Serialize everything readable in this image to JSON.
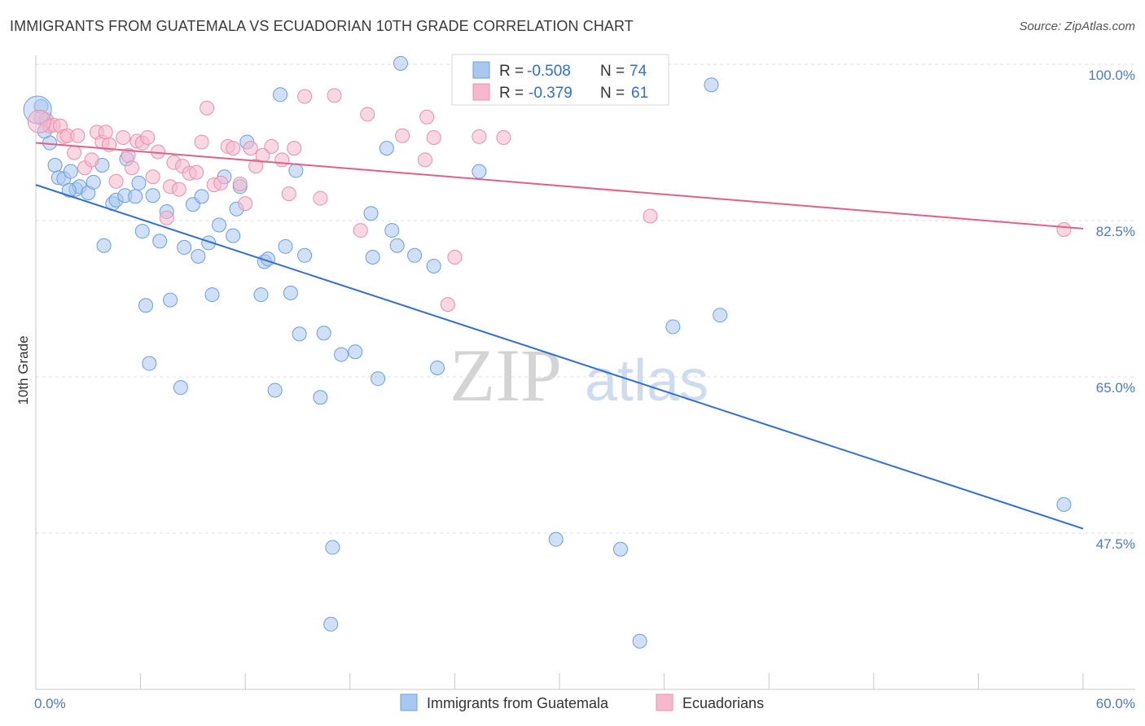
{
  "header": {
    "title": "IMMIGRANTS FROM GUATEMALA VS ECUADORIAN 10TH GRADE CORRELATION CHART",
    "source": "Source: ZipAtlas.com"
  },
  "legend_box": {
    "rows": [
      {
        "r_label": "R =",
        "r_value": "-0.508",
        "n_label": "N =",
        "n_value": "74",
        "color": "#a9c8f0"
      },
      {
        "r_label": "R =",
        "r_value": "-0.379",
        "n_label": "N =",
        "n_value": "61",
        "color": "#f5b8cc"
      }
    ]
  },
  "bottom_legend": {
    "items": [
      {
        "label": "Immigrants from Guatemala",
        "color": "#a9c8f0"
      },
      {
        "label": "Ecuadorians",
        "color": "#f5b8cc"
      }
    ]
  },
  "watermark": {
    "zip": "ZIP",
    "atlas": "atlas"
  },
  "chart_data": {
    "type": "scatter",
    "xlabel": "",
    "ylabel": "10th Grade",
    "xlim": [
      0,
      60
    ],
    "ylim": [
      35,
      100
    ],
    "x_tick_labels": [
      "0.0%",
      "60.0%"
    ],
    "y_ticks": [
      47.5,
      65.0,
      82.5,
      100.0
    ],
    "y_tick_labels": [
      "47.5%",
      "65.0%",
      "82.5%",
      "100.0%"
    ],
    "grid": true,
    "legend_position": "bottom",
    "series": [
      {
        "name": "Immigrants from Guatemala",
        "color": "#a9c8f0",
        "stroke": "#6a9fe0",
        "trend_color": "#2f6fd6",
        "trend": {
          "x": [
            0,
            60
          ],
          "y": [
            86.5,
            48.0
          ]
        },
        "points": [
          [
            0.3,
            95.3
          ],
          [
            0.8,
            91.2
          ],
          [
            1.1,
            88.7
          ],
          [
            1.3,
            87.3
          ],
          [
            1.6,
            87.2
          ],
          [
            2.0,
            88.0
          ],
          [
            2.3,
            86.0
          ],
          [
            2.5,
            86.3
          ],
          [
            3.0,
            85.6
          ],
          [
            3.3,
            86.8
          ],
          [
            3.8,
            88.7
          ],
          [
            3.9,
            79.7
          ],
          [
            4.4,
            84.4
          ],
          [
            4.6,
            84.8
          ],
          [
            5.1,
            85.3
          ],
          [
            5.2,
            89.4
          ],
          [
            5.7,
            85.2
          ],
          [
            5.9,
            86.7
          ],
          [
            6.1,
            81.3
          ],
          [
            6.3,
            73.0
          ],
          [
            6.5,
            66.5
          ],
          [
            6.7,
            85.3
          ],
          [
            7.1,
            80.2
          ],
          [
            7.5,
            83.5
          ],
          [
            7.7,
            73.6
          ],
          [
            8.3,
            63.8
          ],
          [
            8.5,
            79.5
          ],
          [
            9.0,
            84.3
          ],
          [
            9.3,
            78.5
          ],
          [
            9.5,
            85.2
          ],
          [
            9.9,
            80.0
          ],
          [
            10.1,
            74.2
          ],
          [
            10.5,
            82.0
          ],
          [
            10.8,
            87.4
          ],
          [
            11.3,
            80.8
          ],
          [
            11.5,
            83.8
          ],
          [
            11.7,
            86.3
          ],
          [
            12.1,
            91.3
          ],
          [
            12.9,
            74.2
          ],
          [
            13.1,
            77.9
          ],
          [
            13.3,
            78.2
          ],
          [
            13.7,
            63.5
          ],
          [
            14.0,
            96.6
          ],
          [
            14.3,
            79.6
          ],
          [
            14.6,
            74.4
          ],
          [
            14.9,
            88.1
          ],
          [
            15.1,
            69.8
          ],
          [
            15.4,
            78.6
          ],
          [
            16.3,
            62.7
          ],
          [
            16.5,
            69.9
          ],
          [
            16.9,
            37.3
          ],
          [
            17.0,
            45.9
          ],
          [
            17.5,
            67.5
          ],
          [
            18.3,
            67.8
          ],
          [
            19.2,
            83.3
          ],
          [
            19.3,
            78.4
          ],
          [
            19.6,
            64.8
          ],
          [
            20.1,
            90.6
          ],
          [
            20.4,
            81.4
          ],
          [
            20.7,
            79.7
          ],
          [
            20.9,
            100.1
          ],
          [
            21.7,
            78.6
          ],
          [
            22.8,
            77.4
          ],
          [
            23.0,
            66.0
          ],
          [
            25.4,
            88.0
          ],
          [
            29.8,
            46.8
          ],
          [
            33.5,
            45.7
          ],
          [
            34.6,
            35.4
          ],
          [
            36.5,
            70.6
          ],
          [
            38.7,
            97.7
          ],
          [
            39.2,
            71.9
          ],
          [
            58.9,
            50.7
          ],
          [
            0.5,
            92.5
          ],
          [
            1.9,
            85.9
          ]
        ]
      },
      {
        "name": "Ecuadorians",
        "color": "#f5b8cc",
        "stroke": "#e890ac",
        "trend_color": "#e06088",
        "trend": {
          "x": [
            0,
            60
          ],
          "y": [
            91.2,
            81.6
          ]
        },
        "points": [
          [
            0.3,
            94.0
          ],
          [
            0.6,
            93.8
          ],
          [
            0.8,
            93.1
          ],
          [
            1.0,
            93.2
          ],
          [
            1.4,
            93.1
          ],
          [
            1.6,
            91.9
          ],
          [
            1.8,
            92.0
          ],
          [
            2.2,
            90.1
          ],
          [
            2.4,
            92.0
          ],
          [
            2.8,
            88.4
          ],
          [
            3.2,
            89.3
          ],
          [
            3.5,
            92.4
          ],
          [
            3.8,
            91.3
          ],
          [
            4.0,
            92.4
          ],
          [
            4.2,
            91.0
          ],
          [
            4.6,
            86.9
          ],
          [
            5.0,
            91.8
          ],
          [
            5.3,
            89.8
          ],
          [
            5.5,
            88.4
          ],
          [
            5.8,
            91.4
          ],
          [
            6.1,
            91.2
          ],
          [
            6.4,
            91.8
          ],
          [
            6.7,
            87.4
          ],
          [
            7.0,
            90.2
          ],
          [
            7.5,
            82.8
          ],
          [
            7.7,
            86.3
          ],
          [
            7.9,
            89.0
          ],
          [
            8.2,
            86.0
          ],
          [
            8.4,
            88.6
          ],
          [
            8.8,
            87.8
          ],
          [
            9.2,
            87.9
          ],
          [
            9.5,
            91.3
          ],
          [
            9.8,
            95.1
          ],
          [
            10.2,
            86.5
          ],
          [
            10.6,
            86.7
          ],
          [
            11.0,
            90.8
          ],
          [
            11.3,
            90.6
          ],
          [
            11.7,
            86.6
          ],
          [
            12.0,
            84.4
          ],
          [
            12.3,
            90.6
          ],
          [
            12.6,
            88.6
          ],
          [
            13.0,
            89.8
          ],
          [
            13.5,
            90.8
          ],
          [
            14.1,
            89.3
          ],
          [
            14.5,
            85.5
          ],
          [
            14.8,
            90.6
          ],
          [
            15.4,
            96.4
          ],
          [
            16.3,
            85.0
          ],
          [
            17.1,
            96.5
          ],
          [
            18.6,
            81.4
          ],
          [
            19.0,
            94.4
          ],
          [
            21.0,
            92.0
          ],
          [
            22.3,
            89.3
          ],
          [
            22.4,
            94.1
          ],
          [
            22.8,
            91.8
          ],
          [
            24.0,
            78.4
          ],
          [
            23.6,
            73.1
          ],
          [
            25.4,
            91.9
          ],
          [
            26.8,
            91.8
          ],
          [
            35.2,
            83.0
          ],
          [
            58.9,
            81.5
          ]
        ]
      }
    ],
    "large_points": [
      {
        "series": "Immigrants from Guatemala",
        "x": 0.1,
        "y": 94.9
      },
      {
        "series": "Ecuadorians",
        "x": 0.2,
        "y": 93.6
      }
    ]
  }
}
